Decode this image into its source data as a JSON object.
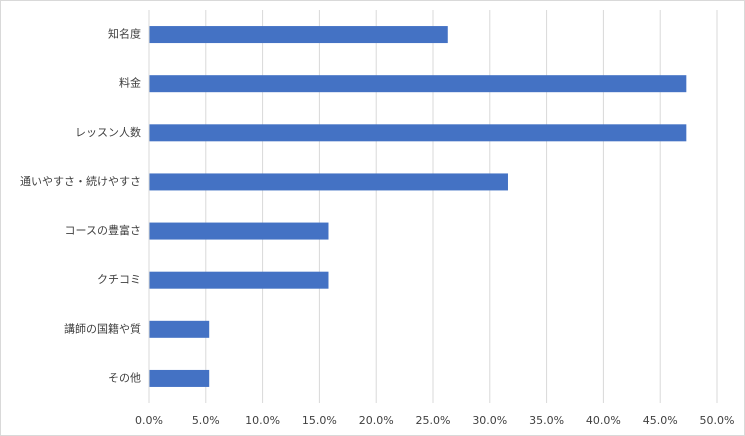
{
  "chart_data": {
    "type": "hbar",
    "categories": [
      "知名度",
      "料金",
      "レッスン人数",
      "通いやすさ・続けやすさ",
      "コースの豊富さ",
      "クチコミ",
      "講師の国籍や質",
      "その他"
    ],
    "values": [
      26.3,
      47.3,
      47.3,
      31.6,
      15.8,
      15.8,
      5.3,
      5.3
    ],
    "color": "#4472c4",
    "xlim": [
      0,
      50
    ],
    "xticks": [
      {
        "value": 0,
        "label": "0.0%"
      },
      {
        "value": 5,
        "label": "5.0%"
      },
      {
        "value": 10,
        "label": "10.0%"
      },
      {
        "value": 15,
        "label": "15.0%"
      },
      {
        "value": 20,
        "label": "20.0%"
      },
      {
        "value": 25,
        "label": "25.0%"
      },
      {
        "value": 30,
        "label": "30.0%"
      },
      {
        "value": 35,
        "label": "35.0%"
      },
      {
        "value": 40,
        "label": "40.0%"
      },
      {
        "value": 45,
        "label": "45.0%"
      },
      {
        "value": 50,
        "label": "50.0%"
      }
    ],
    "grid": true
  }
}
